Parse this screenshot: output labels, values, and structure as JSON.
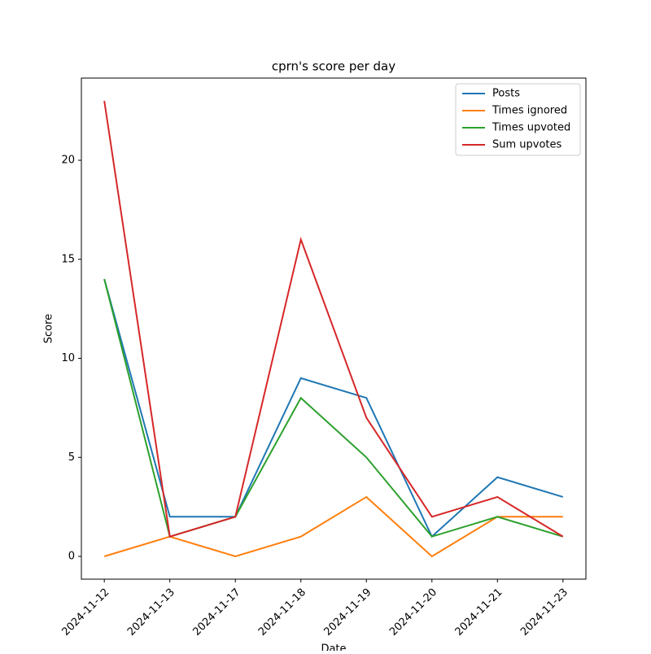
{
  "chart_data": {
    "type": "line",
    "title": "cprn's score per day",
    "x_label": "Date",
    "y_label": "Score",
    "categories": [
      "2024-11-12",
      "2024-11-13",
      "2024-11-17",
      "2024-11-18",
      "2024-11-19",
      "2024-11-20",
      "2024-11-21",
      "2024-11-23"
    ],
    "series": [
      {
        "name": "Posts",
        "color": "#1f77b4",
        "values": [
          14,
          2,
          2,
          9,
          8,
          1,
          4,
          3
        ]
      },
      {
        "name": "Times ignored",
        "color": "#ff7f0e",
        "values": [
          0,
          1,
          0,
          1,
          3,
          0,
          2,
          2
        ]
      },
      {
        "name": "Times upvoted",
        "color": "#2ca02c",
        "values": [
          14,
          1,
          2,
          8,
          5,
          1,
          2,
          1
        ]
      },
      {
        "name": "Sum upvotes",
        "color": "#d62728",
        "values": [
          23,
          1,
          2,
          16,
          7,
          2,
          3,
          1
        ]
      }
    ],
    "ylim": [
      -1.15,
      24.15
    ],
    "yticks": [
      0,
      5,
      10,
      15,
      20
    ],
    "grid": false,
    "legend": "upper right"
  }
}
